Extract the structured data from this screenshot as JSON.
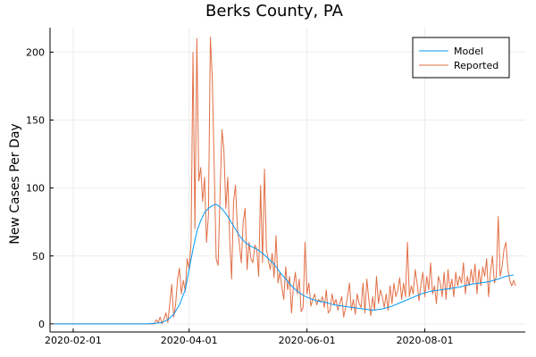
{
  "chart_data": {
    "type": "line",
    "title": "Berks County, PA",
    "xlabel": "",
    "ylabel": "New Cases Per Day",
    "x_axis": {
      "type": "date",
      "range": [
        "2020-01-20",
        "2020-09-22"
      ],
      "ticks": [
        "2020-02-01",
        "2020-04-01",
        "2020-06-01",
        "2020-08-01"
      ]
    },
    "y_axis": {
      "range": [
        -6,
        218
      ],
      "ticks": [
        0,
        50,
        100,
        150,
        200
      ]
    },
    "grid": true,
    "legend": {
      "placement": "top-right",
      "frame": true
    },
    "series": [
      {
        "name": "Model",
        "color": "#009AFA",
        "points": [
          [
            "2020-01-22",
            0
          ],
          [
            "2020-03-10",
            0
          ],
          [
            "2020-03-15",
            0.5
          ],
          [
            "2020-03-18",
            1
          ],
          [
            "2020-03-21",
            3
          ],
          [
            "2020-03-24",
            7
          ],
          [
            "2020-03-27",
            14
          ],
          [
            "2020-03-30",
            25
          ],
          [
            "2020-04-01",
            40
          ],
          [
            "2020-04-03",
            55
          ],
          [
            "2020-04-05",
            68
          ],
          [
            "2020-04-07",
            76
          ],
          [
            "2020-04-09",
            82
          ],
          [
            "2020-04-11",
            85
          ],
          [
            "2020-04-13",
            87
          ],
          [
            "2020-04-15",
            88
          ],
          [
            "2020-04-17",
            86
          ],
          [
            "2020-04-19",
            83
          ],
          [
            "2020-04-21",
            79
          ],
          [
            "2020-04-24",
            72
          ],
          [
            "2020-04-27",
            65
          ],
          [
            "2020-04-30",
            60
          ],
          [
            "2020-05-03",
            57
          ],
          [
            "2020-05-06",
            55
          ],
          [
            "2020-05-09",
            52
          ],
          [
            "2020-05-12",
            48
          ],
          [
            "2020-05-15",
            44
          ],
          [
            "2020-05-18",
            38
          ],
          [
            "2020-05-21",
            33
          ],
          [
            "2020-05-24",
            28
          ],
          [
            "2020-05-27",
            24
          ],
          [
            "2020-05-30",
            21
          ],
          [
            "2020-06-02",
            19
          ],
          [
            "2020-06-06",
            17
          ],
          [
            "2020-06-10",
            16
          ],
          [
            "2020-06-15",
            14
          ],
          [
            "2020-06-20",
            13
          ],
          [
            "2020-06-25",
            12
          ],
          [
            "2020-06-30",
            11
          ],
          [
            "2020-07-05",
            10
          ],
          [
            "2020-07-10",
            11
          ],
          [
            "2020-07-15",
            13
          ],
          [
            "2020-07-20",
            16
          ],
          [
            "2020-07-25",
            19
          ],
          [
            "2020-07-30",
            22
          ],
          [
            "2020-08-04",
            24
          ],
          [
            "2020-08-09",
            25
          ],
          [
            "2020-08-14",
            26
          ],
          [
            "2020-08-19",
            27
          ],
          [
            "2020-08-24",
            29
          ],
          [
            "2020-08-29",
            30
          ],
          [
            "2020-09-03",
            31
          ],
          [
            "2020-09-08",
            33
          ],
          [
            "2020-09-12",
            35
          ],
          [
            "2020-09-16",
            36
          ]
        ]
      },
      {
        "name": "Reported",
        "color": "#E26F46",
        "points": [
          [
            "2020-01-22",
            0
          ],
          [
            "2020-03-10",
            0
          ],
          [
            "2020-03-14",
            0
          ],
          [
            "2020-03-15",
            3
          ],
          [
            "2020-03-16",
            1
          ],
          [
            "2020-03-17",
            5
          ],
          [
            "2020-03-18",
            0
          ],
          [
            "2020-03-19",
            4
          ],
          [
            "2020-03-20",
            8
          ],
          [
            "2020-03-21",
            1
          ],
          [
            "2020-03-22",
            15
          ],
          [
            "2020-03-23",
            29
          ],
          [
            "2020-03-24",
            5
          ],
          [
            "2020-03-25",
            14
          ],
          [
            "2020-03-26",
            33
          ],
          [
            "2020-03-27",
            41
          ],
          [
            "2020-03-28",
            22
          ],
          [
            "2020-03-29",
            32
          ],
          [
            "2020-03-30",
            24
          ],
          [
            "2020-03-31",
            48
          ],
          [
            "2020-04-01",
            40
          ],
          [
            "2020-04-02",
            60
          ],
          [
            "2020-04-03",
            200
          ],
          [
            "2020-04-04",
            70
          ],
          [
            "2020-04-05",
            210
          ],
          [
            "2020-04-06",
            105
          ],
          [
            "2020-04-07",
            115
          ],
          [
            "2020-04-08",
            90
          ],
          [
            "2020-04-09",
            108
          ],
          [
            "2020-04-10",
            60
          ],
          [
            "2020-04-11",
            80
          ],
          [
            "2020-04-12",
            211
          ],
          [
            "2020-04-13",
            180
          ],
          [
            "2020-04-14",
            115
          ],
          [
            "2020-04-15",
            48
          ],
          [
            "2020-04-16",
            43
          ],
          [
            "2020-04-17",
            95
          ],
          [
            "2020-04-18",
            143
          ],
          [
            "2020-04-19",
            128
          ],
          [
            "2020-04-20",
            85
          ],
          [
            "2020-04-21",
            108
          ],
          [
            "2020-04-22",
            62
          ],
          [
            "2020-04-23",
            33
          ],
          [
            "2020-04-24",
            90
          ],
          [
            "2020-04-25",
            102
          ],
          [
            "2020-04-26",
            70
          ],
          [
            "2020-04-27",
            59
          ],
          [
            "2020-04-28",
            45
          ],
          [
            "2020-04-29",
            75
          ],
          [
            "2020-04-30",
            85
          ],
          [
            "2020-05-01",
            40
          ],
          [
            "2020-05-02",
            60
          ],
          [
            "2020-05-03",
            48
          ],
          [
            "2020-05-04",
            45
          ],
          [
            "2020-05-05",
            58
          ],
          [
            "2020-05-06",
            55
          ],
          [
            "2020-05-07",
            35
          ],
          [
            "2020-05-08",
            102
          ],
          [
            "2020-05-09",
            45
          ],
          [
            "2020-05-10",
            114
          ],
          [
            "2020-05-11",
            55
          ],
          [
            "2020-05-12",
            47
          ],
          [
            "2020-05-13",
            40
          ],
          [
            "2020-05-14",
            52
          ],
          [
            "2020-05-15",
            34
          ],
          [
            "2020-05-16",
            65
          ],
          [
            "2020-05-17",
            30
          ],
          [
            "2020-05-18",
            38
          ],
          [
            "2020-05-19",
            27
          ],
          [
            "2020-05-20",
            18
          ],
          [
            "2020-05-21",
            42
          ],
          [
            "2020-05-22",
            25
          ],
          [
            "2020-05-23",
            35
          ],
          [
            "2020-05-24",
            8
          ],
          [
            "2020-05-25",
            28
          ],
          [
            "2020-05-26",
            38
          ],
          [
            "2020-05-27",
            22
          ],
          [
            "2020-05-28",
            33
          ],
          [
            "2020-05-29",
            9
          ],
          [
            "2020-05-30",
            12
          ],
          [
            "2020-05-31",
            60
          ],
          [
            "2020-06-01",
            22
          ],
          [
            "2020-06-02",
            30
          ],
          [
            "2020-06-03",
            13
          ],
          [
            "2020-06-04",
            18
          ],
          [
            "2020-06-05",
            22
          ],
          [
            "2020-06-06",
            14
          ],
          [
            "2020-06-07",
            18
          ],
          [
            "2020-06-08",
            16
          ],
          [
            "2020-06-09",
            20
          ],
          [
            "2020-06-10",
            12
          ],
          [
            "2020-06-11",
            25
          ],
          [
            "2020-06-12",
            8
          ],
          [
            "2020-06-13",
            10
          ],
          [
            "2020-06-14",
            22
          ],
          [
            "2020-06-15",
            14
          ],
          [
            "2020-06-16",
            18
          ],
          [
            "2020-06-17",
            10
          ],
          [
            "2020-06-18",
            15
          ],
          [
            "2020-06-19",
            20
          ],
          [
            "2020-06-20",
            5
          ],
          [
            "2020-06-21",
            12
          ],
          [
            "2020-06-22",
            20
          ],
          [
            "2020-06-23",
            30
          ],
          [
            "2020-06-24",
            10
          ],
          [
            "2020-06-25",
            18
          ],
          [
            "2020-06-26",
            7
          ],
          [
            "2020-06-27",
            22
          ],
          [
            "2020-06-28",
            15
          ],
          [
            "2020-06-29",
            12
          ],
          [
            "2020-06-30",
            30
          ],
          [
            "2020-07-01",
            8
          ],
          [
            "2020-07-02",
            33
          ],
          [
            "2020-07-03",
            18
          ],
          [
            "2020-07-04",
            6
          ],
          [
            "2020-07-05",
            20
          ],
          [
            "2020-07-06",
            10
          ],
          [
            "2020-07-07",
            35
          ],
          [
            "2020-07-08",
            15
          ],
          [
            "2020-07-09",
            25
          ],
          [
            "2020-07-10",
            20
          ],
          [
            "2020-07-11",
            12
          ],
          [
            "2020-07-12",
            22
          ],
          [
            "2020-07-13",
            10
          ],
          [
            "2020-07-14",
            28
          ],
          [
            "2020-07-15",
            15
          ],
          [
            "2020-07-16",
            30
          ],
          [
            "2020-07-17",
            20
          ],
          [
            "2020-07-18",
            25
          ],
          [
            "2020-07-19",
            34
          ],
          [
            "2020-07-20",
            18
          ],
          [
            "2020-07-21",
            30
          ],
          [
            "2020-07-22",
            20
          ],
          [
            "2020-07-23",
            60
          ],
          [
            "2020-07-24",
            20
          ],
          [
            "2020-07-25",
            28
          ],
          [
            "2020-07-26",
            22
          ],
          [
            "2020-07-27",
            40
          ],
          [
            "2020-07-28",
            30
          ],
          [
            "2020-07-29",
            17
          ],
          [
            "2020-07-30",
            29
          ],
          [
            "2020-07-31",
            38
          ],
          [
            "2020-08-01",
            20
          ],
          [
            "2020-08-02",
            35
          ],
          [
            "2020-08-03",
            25
          ],
          [
            "2020-08-04",
            45
          ],
          [
            "2020-08-05",
            22
          ],
          [
            "2020-08-06",
            28
          ],
          [
            "2020-08-07",
            15
          ],
          [
            "2020-08-08",
            35
          ],
          [
            "2020-08-09",
            30
          ],
          [
            "2020-08-10",
            20
          ],
          [
            "2020-08-11",
            38
          ],
          [
            "2020-08-12",
            18
          ],
          [
            "2020-08-13",
            40
          ],
          [
            "2020-08-14",
            25
          ],
          [
            "2020-08-15",
            33
          ],
          [
            "2020-08-16",
            20
          ],
          [
            "2020-08-17",
            38
          ],
          [
            "2020-08-18",
            28
          ],
          [
            "2020-08-19",
            35
          ],
          [
            "2020-08-20",
            30
          ],
          [
            "2020-08-21",
            45
          ],
          [
            "2020-08-22",
            22
          ],
          [
            "2020-08-23",
            35
          ],
          [
            "2020-08-24",
            28
          ],
          [
            "2020-08-25",
            40
          ],
          [
            "2020-08-26",
            30
          ],
          [
            "2020-08-27",
            44
          ],
          [
            "2020-08-28",
            22
          ],
          [
            "2020-08-29",
            40
          ],
          [
            "2020-08-30",
            28
          ],
          [
            "2020-08-31",
            42
          ],
          [
            "2020-09-01",
            35
          ],
          [
            "2020-09-02",
            48
          ],
          [
            "2020-09-03",
            20
          ],
          [
            "2020-09-04",
            38
          ],
          [
            "2020-09-05",
            50
          ],
          [
            "2020-09-06",
            30
          ],
          [
            "2020-09-07",
            35
          ],
          [
            "2020-09-08",
            79
          ],
          [
            "2020-09-09",
            35
          ],
          [
            "2020-09-10",
            42
          ],
          [
            "2020-09-11",
            55
          ],
          [
            "2020-09-12",
            60
          ],
          [
            "2020-09-13",
            40
          ],
          [
            "2020-09-14",
            32
          ],
          [
            "2020-09-15",
            28
          ],
          [
            "2020-09-16",
            32
          ],
          [
            "2020-09-17",
            28
          ]
        ]
      }
    ]
  }
}
